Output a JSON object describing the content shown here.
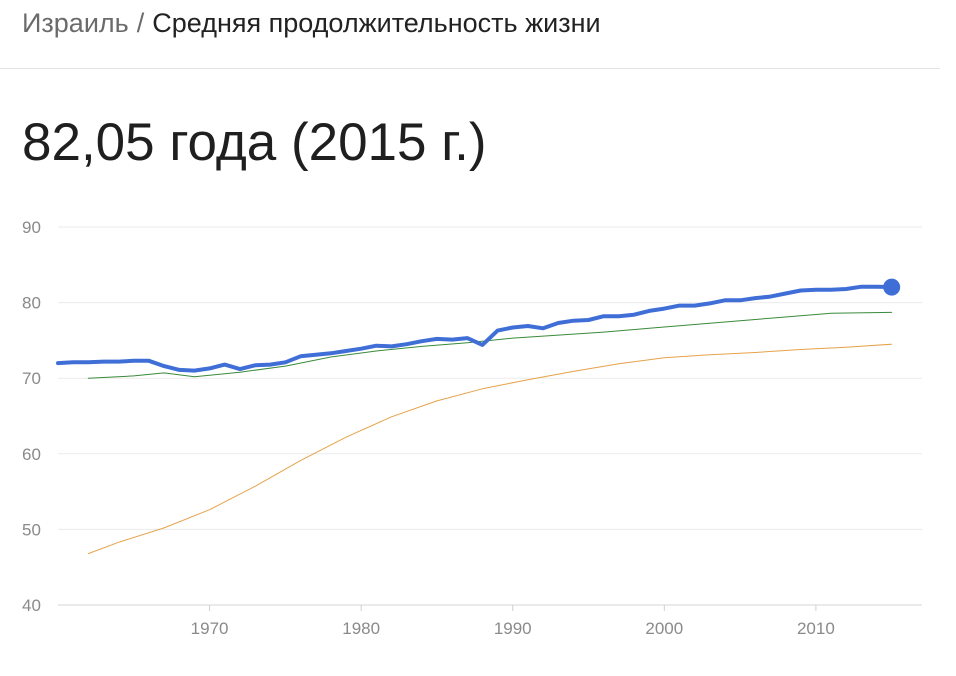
{
  "breadcrumb": {
    "country": "Израиль",
    "separator": "/",
    "indicator": "Средняя продолжительность жизни"
  },
  "headline": "82,05 года (2015 г.)",
  "chart_data": {
    "type": "line",
    "xlim": [
      1960,
      2017
    ],
    "ylim": [
      40,
      90
    ],
    "yticks": [
      "40",
      "50",
      "60",
      "70",
      "80",
      "90"
    ],
    "xticks": [
      "1970",
      "1980",
      "1990",
      "2000",
      "2010"
    ],
    "grid": true,
    "series": [
      {
        "color": "#3f6fd6",
        "highlight_last": true,
        "x": [
          1960,
          1961,
          1962,
          1963,
          1964,
          1965,
          1966,
          1967,
          1968,
          1969,
          1970,
          1971,
          1972,
          1973,
          1974,
          1975,
          1976,
          1977,
          1978,
          1979,
          1980,
          1981,
          1982,
          1983,
          1984,
          1985,
          1986,
          1987,
          1988,
          1989,
          1990,
          1991,
          1992,
          1993,
          1994,
          1995,
          1996,
          1997,
          1998,
          1999,
          2000,
          2001,
          2002,
          2003,
          2004,
          2005,
          2006,
          2007,
          2008,
          2009,
          2010,
          2011,
          2012,
          2013,
          2014,
          2015
        ],
        "y": [
          72.0,
          72.1,
          72.1,
          72.2,
          72.2,
          72.3,
          72.3,
          71.6,
          71.1,
          71.0,
          71.3,
          71.8,
          71.2,
          71.7,
          71.8,
          72.1,
          72.9,
          73.1,
          73.3,
          73.6,
          73.9,
          74.3,
          74.2,
          74.5,
          74.9,
          75.2,
          75.1,
          75.3,
          74.4,
          76.3,
          76.7,
          76.9,
          76.6,
          77.3,
          77.6,
          77.7,
          78.2,
          78.2,
          78.4,
          78.9,
          79.2,
          79.6,
          79.6,
          79.9,
          80.3,
          80.3,
          80.6,
          80.8,
          81.2,
          81.6,
          81.7,
          81.7,
          81.8,
          82.1,
          82.1,
          82.05
        ]
      },
      {
        "color": "#3a8a3a",
        "x": [
          1962,
          1965,
          1967,
          1969,
          1972,
          1975,
          1978,
          1981,
          1984,
          1987,
          1990,
          1993,
          1996,
          1999,
          2002,
          2005,
          2008,
          2011,
          2015
        ],
        "y": [
          70.0,
          70.3,
          70.7,
          70.2,
          70.8,
          71.6,
          72.8,
          73.6,
          74.2,
          74.7,
          75.3,
          75.7,
          76.1,
          76.6,
          77.1,
          77.6,
          78.1,
          78.6,
          78.7
        ]
      },
      {
        "color": "#e6a24a",
        "x": [
          1962,
          1964,
          1967,
          1970,
          1973,
          1976,
          1979,
          1982,
          1985,
          1988,
          1991,
          1994,
          1997,
          2000,
          2003,
          2006,
          2009,
          2012,
          2015
        ],
        "y": [
          46.8,
          48.3,
          50.2,
          52.6,
          55.7,
          59.1,
          62.2,
          64.9,
          67.0,
          68.6,
          69.8,
          70.9,
          71.9,
          72.7,
          73.1,
          73.4,
          73.8,
          74.1,
          74.5
        ]
      }
    ]
  }
}
